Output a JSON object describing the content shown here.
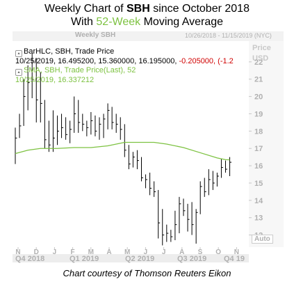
{
  "title": {
    "line1_pre": "Weekly Chart of ",
    "line1_ticker": "SBH",
    "line1_post": " since October 2018",
    "line2_pre": "With ",
    "line2_highlight": "52-Week",
    "line2_post": " Moving Average"
  },
  "panel": {
    "title": "Weekly SBH",
    "range": "10/26/2018 - 11/15/2019 (NYC)",
    "price_label": "Price",
    "currency_label": "USD",
    "auto_label": "Auto"
  },
  "legend": {
    "bar_name": "BarHLC, SBH, Trade Price",
    "bar_values": "10/25/2019, 16.495200, 15.360000, 16.195000, ",
    "bar_change": "-0.205000, (-1.2",
    "sma_name": "SMA, SBH, Trade Price(Last),  52",
    "sma_values": "10/25/2019, 16.337212"
  },
  "courtesy": "Chart courtesy of Thomson Reuters Eikon",
  "colors": {
    "bars": "#000000",
    "sma": "#7dc241",
    "negative": "#d00000",
    "axis_text": "#b0b0b0"
  },
  "chart_data": {
    "type": "line",
    "ylim": [
      11.3,
      23.2
    ],
    "y_ticks": [
      12,
      13,
      14,
      15,
      16,
      17,
      18,
      19,
      20,
      21,
      22
    ],
    "x_ticks": [
      "N",
      "D",
      "J",
      "F",
      "M",
      "A",
      "M",
      "J",
      "J",
      "A",
      "S",
      "O",
      "N"
    ],
    "period_labels": [
      "Q4 2018",
      "Q1 2019",
      "Q2 2019",
      "Q3 2019",
      "Q4 19"
    ],
    "weeks_total": 54,
    "series": [
      {
        "name": "BarHLC, SBH, Trade Price",
        "kind": "hlc",
        "bars": [
          [
            0,
            18.2,
            16.1,
            17.6
          ],
          [
            1,
            19.0,
            17.6,
            18.3
          ],
          [
            2,
            21.0,
            18.3,
            20.0
          ],
          [
            3,
            21.8,
            19.2,
            20.8
          ],
          [
            4,
            22.5,
            19.9,
            21.0
          ],
          [
            5,
            22.2,
            18.5,
            19.8
          ],
          [
            6,
            21.4,
            18.5,
            19.6
          ],
          [
            7,
            19.8,
            17.0,
            17.5
          ],
          [
            8,
            18.6,
            16.8,
            17.2
          ],
          [
            9,
            19.2,
            16.8,
            17.6
          ],
          [
            10,
            18.9,
            17.2,
            18.0
          ],
          [
            11,
            19.0,
            17.6,
            18.2
          ],
          [
            12,
            18.8,
            17.5,
            17.8
          ],
          [
            13,
            18.6,
            17.3,
            18.1
          ],
          [
            14,
            20.0,
            17.9,
            19.0
          ],
          [
            15,
            19.8,
            17.9,
            18.5
          ],
          [
            16,
            19.0,
            18.0,
            18.4
          ],
          [
            17,
            18.6,
            17.7,
            18.2
          ],
          [
            18,
            19.1,
            17.8,
            18.6
          ],
          [
            19,
            18.9,
            17.7,
            18.0
          ],
          [
            20,
            18.8,
            17.5,
            18.4
          ],
          [
            21,
            19.0,
            17.6,
            18.7
          ],
          [
            22,
            19.6,
            18.1,
            19.2
          ],
          [
            23,
            19.4,
            18.1,
            18.5
          ],
          [
            24,
            19.0,
            17.9,
            18.4
          ],
          [
            25,
            18.8,
            17.5,
            18.1
          ],
          [
            26,
            18.4,
            16.5,
            16.9
          ],
          [
            27,
            17.2,
            15.8,
            16.1
          ],
          [
            28,
            16.8,
            15.9,
            16.5
          ],
          [
            29,
            16.9,
            15.8,
            16.3
          ],
          [
            30,
            16.5,
            15.1,
            15.3
          ],
          [
            31,
            15.5,
            14.7,
            15.2
          ],
          [
            32,
            15.6,
            14.3,
            14.7
          ],
          [
            33,
            15.1,
            14.2,
            14.5
          ],
          [
            34,
            14.6,
            11.8,
            12.7
          ],
          [
            35,
            13.5,
            11.4,
            12.0
          ],
          [
            36,
            12.6,
            11.6,
            12.1
          ],
          [
            37,
            12.3,
            11.6,
            11.9
          ],
          [
            38,
            13.4,
            11.7,
            12.6
          ],
          [
            39,
            14.2,
            12.1,
            13.8
          ],
          [
            40,
            14.1,
            13.1,
            13.4
          ],
          [
            41,
            13.8,
            12.2,
            12.9
          ],
          [
            42,
            13.9,
            12.0,
            12.6
          ],
          [
            43,
            13.5,
            11.5,
            13.3
          ],
          [
            44,
            15.1,
            13.2,
            14.8
          ],
          [
            45,
            15.3,
            14.2,
            14.5
          ],
          [
            46,
            15.8,
            14.3,
            15.2
          ],
          [
            47,
            15.7,
            14.6,
            15.0
          ],
          [
            48,
            15.6,
            14.8,
            15.4
          ],
          [
            49,
            16.4,
            15.3,
            15.9
          ],
          [
            50,
            16.3,
            15.6,
            15.8
          ],
          [
            51,
            16.5,
            15.4,
            16.2
          ]
        ]
      },
      {
        "name": "SMA, SBH, Trade Price(Last),  52",
        "kind": "line",
        "points": [
          [
            0,
            16.7
          ],
          [
            3,
            16.9
          ],
          [
            6,
            17.0
          ],
          [
            10,
            17.0
          ],
          [
            14,
            17.05
          ],
          [
            18,
            17.05
          ],
          [
            22,
            17.15
          ],
          [
            26,
            17.35
          ],
          [
            30,
            17.35
          ],
          [
            33,
            17.35
          ],
          [
            36,
            17.25
          ],
          [
            40,
            17.05
          ],
          [
            44,
            16.75
          ],
          [
            48,
            16.45
          ],
          [
            50,
            16.35
          ],
          [
            51,
            16.34
          ]
        ]
      }
    ]
  }
}
